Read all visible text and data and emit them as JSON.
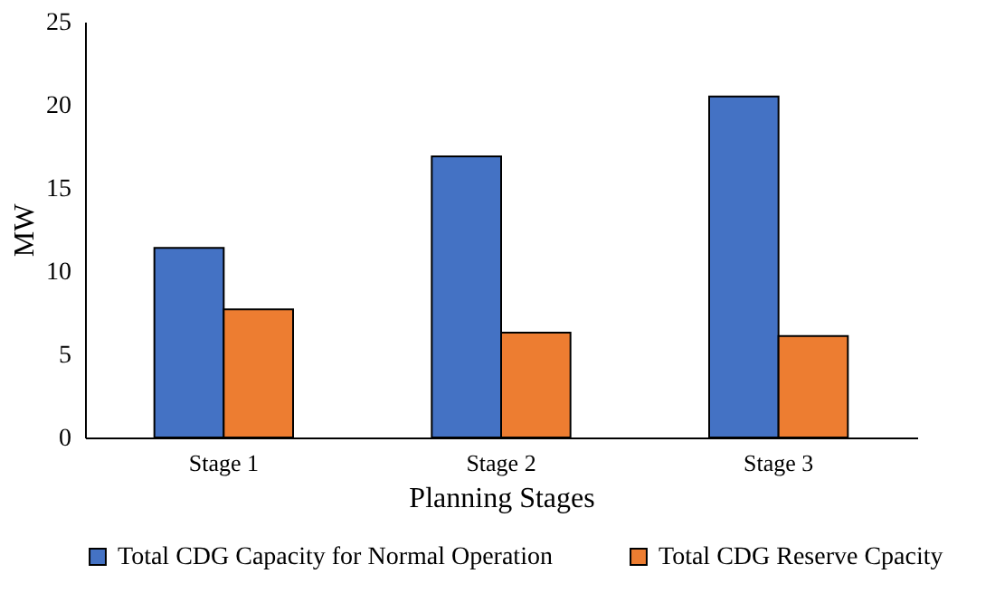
{
  "chart_data": {
    "type": "bar",
    "xlabel": "Planning Stages",
    "ylabel": "MW",
    "categories": [
      "Stage 1",
      "Stage 2",
      "Stage 3"
    ],
    "series": [
      {
        "name": "Total CDG Capacity for Normal Operation",
        "color": "#4472c4",
        "values": [
          11.4,
          16.9,
          20.5
        ]
      },
      {
        "name": "Total CDG Reserve Cpacity",
        "color": "#ed7d31",
        "values": [
          7.7,
          6.3,
          6.1
        ]
      }
    ],
    "ylim": [
      0,
      25
    ],
    "yticks": [
      0,
      5,
      10,
      15,
      20,
      25
    ],
    "grid": false,
    "legend": "bottom"
  }
}
